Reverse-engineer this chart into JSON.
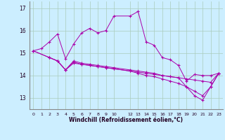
{
  "xlabel": "Windchill (Refroidissement éolien,°C)",
  "background_color": "#cceeff",
  "grid_color": "#aaccbb",
  "line_color": "#aa00aa",
  "x_ticks": [
    0,
    1,
    2,
    3,
    4,
    5,
    6,
    7,
    8,
    9,
    10,
    12,
    13,
    14,
    15,
    16,
    17,
    18,
    19,
    20,
    21,
    22,
    23
  ],
  "ylim": [
    12.5,
    17.3
  ],
  "xlim": [
    -0.5,
    23.5
  ],
  "yticks": [
    13,
    14,
    15,
    16,
    17
  ],
  "line1_x": [
    0,
    1,
    2,
    3,
    4,
    5,
    6,
    7,
    8,
    9,
    10,
    12,
    13,
    14,
    15,
    16,
    17,
    18,
    19,
    20,
    21,
    22,
    23
  ],
  "line1_y": [
    15.1,
    15.2,
    15.5,
    15.85,
    14.75,
    15.4,
    15.9,
    16.1,
    15.9,
    16.0,
    16.65,
    16.65,
    16.85,
    15.5,
    15.35,
    14.8,
    14.7,
    14.45,
    13.75,
    14.05,
    14.0,
    14.0,
    14.1
  ],
  "line2_x": [
    0,
    2,
    3,
    4,
    5,
    6,
    7,
    8,
    9,
    10,
    12,
    13,
    14,
    15,
    16,
    17,
    18,
    19,
    20,
    21,
    22,
    23
  ],
  "line2_y": [
    15.1,
    14.8,
    14.65,
    14.25,
    14.6,
    14.5,
    14.45,
    14.4,
    14.35,
    14.3,
    14.2,
    14.15,
    14.1,
    14.05,
    14.0,
    13.95,
    13.9,
    13.85,
    13.8,
    13.75,
    13.7,
    14.1
  ],
  "line3_x": [
    0,
    2,
    3,
    4,
    5,
    6,
    7,
    8,
    9,
    10,
    12,
    13,
    14,
    15,
    16,
    17,
    18,
    19,
    20,
    21,
    22,
    23
  ],
  "line3_y": [
    15.1,
    14.8,
    14.65,
    14.25,
    14.65,
    14.55,
    14.5,
    14.45,
    14.4,
    14.35,
    14.25,
    14.2,
    14.15,
    14.1,
    14.0,
    13.95,
    13.9,
    13.5,
    13.1,
    12.9,
    13.5,
    14.1
  ],
  "line4_x": [
    2,
    3,
    4,
    5,
    6,
    7,
    8,
    9,
    10,
    12,
    13,
    14,
    15,
    16,
    17,
    18,
    19,
    20,
    21,
    22,
    23
  ],
  "line4_y": [
    14.8,
    14.65,
    14.25,
    14.55,
    14.5,
    14.45,
    14.4,
    14.35,
    14.3,
    14.2,
    14.1,
    14.0,
    13.95,
    13.85,
    13.75,
    13.65,
    13.5,
    13.3,
    13.1,
    13.5,
    14.1
  ]
}
